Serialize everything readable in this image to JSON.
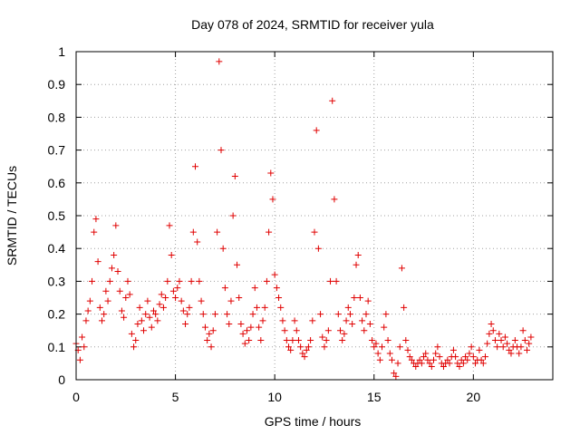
{
  "chart_data": {
    "type": "scatter",
    "title": "Day 078 of 2024, SRMTID for receiver yula",
    "xlabel": "GPS time / hours",
    "ylabel": "SRMTID / TECUs",
    "xlim": [
      0,
      24
    ],
    "ylim": [
      0,
      1
    ],
    "xticks": [
      0,
      5,
      10,
      15,
      20
    ],
    "xtick_labels": [
      "0",
      "5",
      "10",
      "15",
      "20"
    ],
    "yticks": [
      0,
      0.1,
      0.2,
      0.3,
      0.4,
      0.5,
      0.6,
      0.7,
      0.8,
      0.9,
      1
    ],
    "ytick_labels": [
      "0",
      "0.1",
      "0.2",
      "0.3",
      "0.4",
      "0.5",
      "0.6",
      "0.7",
      "0.8",
      "0.9",
      "1"
    ],
    "grid": true,
    "marker": "+",
    "color": "#e00000",
    "series": [
      {
        "name": "SRMTID",
        "points": [
          [
            0.0,
            0.11
          ],
          [
            0.1,
            0.09
          ],
          [
            0.2,
            0.06
          ],
          [
            0.3,
            0.13
          ],
          [
            0.4,
            0.1
          ],
          [
            0.5,
            0.18
          ],
          [
            0.6,
            0.21
          ],
          [
            0.7,
            0.24
          ],
          [
            0.8,
            0.3
          ],
          [
            0.9,
            0.45
          ],
          [
            1.0,
            0.49
          ],
          [
            1.1,
            0.36
          ],
          [
            1.2,
            0.22
          ],
          [
            1.3,
            0.18
          ],
          [
            1.4,
            0.2
          ],
          [
            1.5,
            0.27
          ],
          [
            1.6,
            0.24
          ],
          [
            1.7,
            0.3
          ],
          [
            1.8,
            0.34
          ],
          [
            1.9,
            0.38
          ],
          [
            2.0,
            0.47
          ],
          [
            2.1,
            0.33
          ],
          [
            2.2,
            0.27
          ],
          [
            2.3,
            0.21
          ],
          [
            2.4,
            0.19
          ],
          [
            2.5,
            0.25
          ],
          [
            2.6,
            0.3
          ],
          [
            2.7,
            0.26
          ],
          [
            2.8,
            0.14
          ],
          [
            2.9,
            0.1
          ],
          [
            3.0,
            0.12
          ],
          [
            3.1,
            0.17
          ],
          [
            3.2,
            0.22
          ],
          [
            3.3,
            0.18
          ],
          [
            3.4,
            0.15
          ],
          [
            3.5,
            0.2
          ],
          [
            3.6,
            0.24
          ],
          [
            3.7,
            0.19
          ],
          [
            3.8,
            0.16
          ],
          [
            3.9,
            0.21
          ],
          [
            4.0,
            0.2
          ],
          [
            4.1,
            0.18
          ],
          [
            4.2,
            0.23
          ],
          [
            4.3,
            0.26
          ],
          [
            4.4,
            0.22
          ],
          [
            4.5,
            0.25
          ],
          [
            4.6,
            0.3
          ],
          [
            4.7,
            0.47
          ],
          [
            4.8,
            0.38
          ],
          [
            4.9,
            0.27
          ],
          [
            5.0,
            0.25
          ],
          [
            5.1,
            0.28
          ],
          [
            5.2,
            0.3
          ],
          [
            5.3,
            0.24
          ],
          [
            5.4,
            0.21
          ],
          [
            5.5,
            0.17
          ],
          [
            5.6,
            0.2
          ],
          [
            5.7,
            0.22
          ],
          [
            5.8,
            0.3
          ],
          [
            5.9,
            0.45
          ],
          [
            6.0,
            0.65
          ],
          [
            6.1,
            0.42
          ],
          [
            6.2,
            0.3
          ],
          [
            6.3,
            0.24
          ],
          [
            6.4,
            0.2
          ],
          [
            6.5,
            0.16
          ],
          [
            6.6,
            0.12
          ],
          [
            6.7,
            0.14
          ],
          [
            6.8,
            0.1
          ],
          [
            6.9,
            0.15
          ],
          [
            7.0,
            0.2
          ],
          [
            7.1,
            0.45
          ],
          [
            7.2,
            0.97
          ],
          [
            7.3,
            0.7
          ],
          [
            7.4,
            0.4
          ],
          [
            7.5,
            0.28
          ],
          [
            7.6,
            0.2
          ],
          [
            7.7,
            0.17
          ],
          [
            7.8,
            0.24
          ],
          [
            7.9,
            0.5
          ],
          [
            8.0,
            0.62
          ],
          [
            8.1,
            0.35
          ],
          [
            8.2,
            0.25
          ],
          [
            8.3,
            0.17
          ],
          [
            8.4,
            0.14
          ],
          [
            8.5,
            0.11
          ],
          [
            8.6,
            0.15
          ],
          [
            8.7,
            0.12
          ],
          [
            8.8,
            0.16
          ],
          [
            8.9,
            0.2
          ],
          [
            9.0,
            0.28
          ],
          [
            9.1,
            0.22
          ],
          [
            9.2,
            0.16
          ],
          [
            9.3,
            0.12
          ],
          [
            9.4,
            0.18
          ],
          [
            9.5,
            0.22
          ],
          [
            9.6,
            0.3
          ],
          [
            9.7,
            0.45
          ],
          [
            9.8,
            0.63
          ],
          [
            9.9,
            0.55
          ],
          [
            10.0,
            0.32
          ],
          [
            10.1,
            0.28
          ],
          [
            10.2,
            0.25
          ],
          [
            10.3,
            0.22
          ],
          [
            10.4,
            0.18
          ],
          [
            10.5,
            0.15
          ],
          [
            10.6,
            0.12
          ],
          [
            10.7,
            0.1
          ],
          [
            10.8,
            0.09
          ],
          [
            10.9,
            0.12
          ],
          [
            11.0,
            0.18
          ],
          [
            11.1,
            0.15
          ],
          [
            11.2,
            0.12
          ],
          [
            11.3,
            0.1
          ],
          [
            11.4,
            0.08
          ],
          [
            11.5,
            0.07
          ],
          [
            11.6,
            0.09
          ],
          [
            11.7,
            0.1
          ],
          [
            11.8,
            0.12
          ],
          [
            11.9,
            0.18
          ],
          [
            12.0,
            0.45
          ],
          [
            12.1,
            0.76
          ],
          [
            12.2,
            0.4
          ],
          [
            12.3,
            0.2
          ],
          [
            12.4,
            0.13
          ],
          [
            12.5,
            0.1
          ],
          [
            12.6,
            0.12
          ],
          [
            12.7,
            0.15
          ],
          [
            12.8,
            0.3
          ],
          [
            12.9,
            0.85
          ],
          [
            13.0,
            0.55
          ],
          [
            13.1,
            0.3
          ],
          [
            13.2,
            0.2
          ],
          [
            13.3,
            0.15
          ],
          [
            13.4,
            0.12
          ],
          [
            13.5,
            0.14
          ],
          [
            13.6,
            0.18
          ],
          [
            13.7,
            0.22
          ],
          [
            13.8,
            0.2
          ],
          [
            13.9,
            0.17
          ],
          [
            14.0,
            0.25
          ],
          [
            14.1,
            0.35
          ],
          [
            14.2,
            0.38
          ],
          [
            14.3,
            0.25
          ],
          [
            14.4,
            0.18
          ],
          [
            14.5,
            0.15
          ],
          [
            14.6,
            0.2
          ],
          [
            14.7,
            0.24
          ],
          [
            14.8,
            0.17
          ],
          [
            14.9,
            0.12
          ],
          [
            15.0,
            0.1
          ],
          [
            15.1,
            0.11
          ],
          [
            15.2,
            0.08
          ],
          [
            15.3,
            0.06
          ],
          [
            15.4,
            0.1
          ],
          [
            15.5,
            0.16
          ],
          [
            15.6,
            0.2
          ],
          [
            15.7,
            0.12
          ],
          [
            15.8,
            0.08
          ],
          [
            15.9,
            0.06
          ],
          [
            16.0,
            0.02
          ],
          [
            16.1,
            0.01
          ],
          [
            16.2,
            0.05
          ],
          [
            16.3,
            0.1
          ],
          [
            16.4,
            0.34
          ],
          [
            16.5,
            0.22
          ],
          [
            16.6,
            0.12
          ],
          [
            16.7,
            0.09
          ],
          [
            16.8,
            0.07
          ],
          [
            16.9,
            0.06
          ],
          [
            17.0,
            0.05
          ],
          [
            17.1,
            0.04
          ],
          [
            17.2,
            0.05
          ],
          [
            17.3,
            0.06
          ],
          [
            17.4,
            0.05
          ],
          [
            17.5,
            0.07
          ],
          [
            17.6,
            0.08
          ],
          [
            17.7,
            0.06
          ],
          [
            17.8,
            0.05
          ],
          [
            17.9,
            0.04
          ],
          [
            18.0,
            0.06
          ],
          [
            18.1,
            0.08
          ],
          [
            18.2,
            0.1
          ],
          [
            18.3,
            0.07
          ],
          [
            18.4,
            0.05
          ],
          [
            18.5,
            0.04
          ],
          [
            18.6,
            0.05
          ],
          [
            18.7,
            0.06
          ],
          [
            18.8,
            0.05
          ],
          [
            18.9,
            0.07
          ],
          [
            19.0,
            0.09
          ],
          [
            19.1,
            0.07
          ],
          [
            19.2,
            0.05
          ],
          [
            19.3,
            0.04
          ],
          [
            19.4,
            0.06
          ],
          [
            19.5,
            0.05
          ],
          [
            19.6,
            0.07
          ],
          [
            19.7,
            0.06
          ],
          [
            19.8,
            0.08
          ],
          [
            19.9,
            0.1
          ],
          [
            20.0,
            0.07
          ],
          [
            20.1,
            0.05
          ],
          [
            20.2,
            0.06
          ],
          [
            20.3,
            0.09
          ],
          [
            20.4,
            0.06
          ],
          [
            20.5,
            0.05
          ],
          [
            20.6,
            0.07
          ],
          [
            20.7,
            0.11
          ],
          [
            20.8,
            0.14
          ],
          [
            20.9,
            0.17
          ],
          [
            21.0,
            0.15
          ],
          [
            21.1,
            0.12
          ],
          [
            21.2,
            0.1
          ],
          [
            21.3,
            0.14
          ],
          [
            21.4,
            0.12
          ],
          [
            21.5,
            0.1
          ],
          [
            21.6,
            0.13
          ],
          [
            21.7,
            0.11
          ],
          [
            21.8,
            0.09
          ],
          [
            21.9,
            0.08
          ],
          [
            22.0,
            0.1
          ],
          [
            22.1,
            0.12
          ],
          [
            22.2,
            0.1
          ],
          [
            22.3,
            0.08
          ],
          [
            22.4,
            0.1
          ],
          [
            22.5,
            0.15
          ],
          [
            22.6,
            0.12
          ],
          [
            22.7,
            0.09
          ],
          [
            22.8,
            0.11
          ],
          [
            22.9,
            0.13
          ]
        ]
      }
    ]
  }
}
